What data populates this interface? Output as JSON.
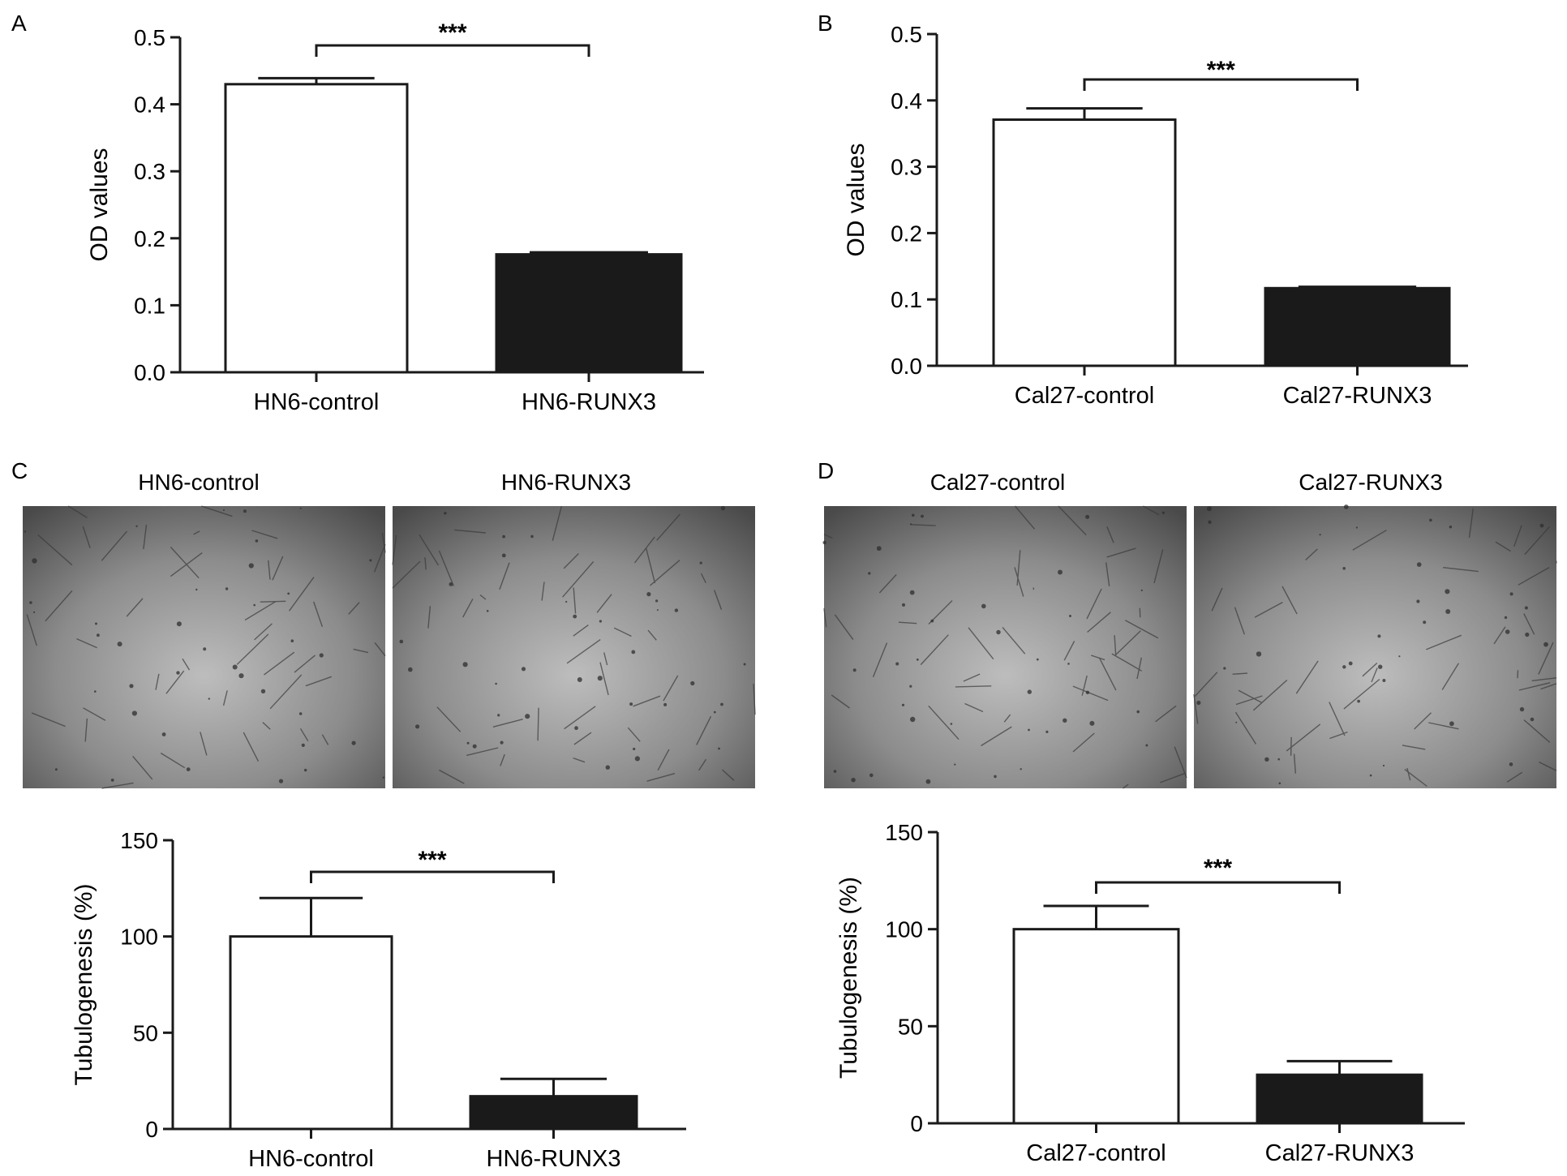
{
  "panel_letters": [
    "A",
    "B",
    "C",
    "D"
  ],
  "chart_data": [
    {
      "panel": "A",
      "type": "bar",
      "categories": [
        "HN6-control",
        "HN6-RUNX3"
      ],
      "values": [
        0.43,
        0.176
      ],
      "errors": [
        0.009,
        0.003
      ],
      "fills": [
        "#ffffff",
        "#1a1a1a"
      ],
      "ylabel": "OD values",
      "ylim": [
        0,
        0.5
      ],
      "yticks": [
        "0.0",
        "0.1",
        "0.2",
        "0.3",
        "0.4",
        "0.5"
      ],
      "significance": "***",
      "grid": false
    },
    {
      "panel": "B",
      "type": "bar",
      "categories": [
        "Cal27-control",
        "Cal27-RUNX3"
      ],
      "values": [
        0.371,
        0.117
      ],
      "errors": [
        0.017,
        0.002
      ],
      "fills": [
        "#ffffff",
        "#1a1a1a"
      ],
      "ylabel": "OD values",
      "ylim": [
        0,
        0.5
      ],
      "yticks": [
        "0.0",
        "0.1",
        "0.2",
        "0.3",
        "0.4",
        "0.5"
      ],
      "significance": "***",
      "grid": false
    },
    {
      "panel": "C",
      "type": "bar",
      "categories": [
        "HN6-control",
        "HN6-RUNX3"
      ],
      "values": [
        100,
        17
      ],
      "errors": [
        20,
        9
      ],
      "fills": [
        "#ffffff",
        "#1a1a1a"
      ],
      "ylabel": "Tubulogenesis (%)",
      "ylim": [
        0,
        150
      ],
      "yticks": [
        "0",
        "50",
        "100",
        "150"
      ],
      "significance": "***",
      "grid": false
    },
    {
      "panel": "D",
      "type": "bar",
      "categories": [
        "Cal27-control",
        "Cal27-RUNX3"
      ],
      "values": [
        100,
        25
      ],
      "errors": [
        12,
        7
      ],
      "fills": [
        "#ffffff",
        "#1a1a1a"
      ],
      "ylabel": "Tubulogenesis (%)",
      "ylim": [
        0,
        150
      ],
      "yticks": [
        "0",
        "50",
        "100",
        "150"
      ],
      "significance": "***",
      "grid": false
    }
  ],
  "micrographs": [
    {
      "panel": "C",
      "caption": "HN6-control"
    },
    {
      "panel": "C",
      "caption": "HN6-RUNX3"
    },
    {
      "panel": "D",
      "caption": "Cal27-control"
    },
    {
      "panel": "D",
      "caption": "Cal27-RUNX3"
    }
  ]
}
